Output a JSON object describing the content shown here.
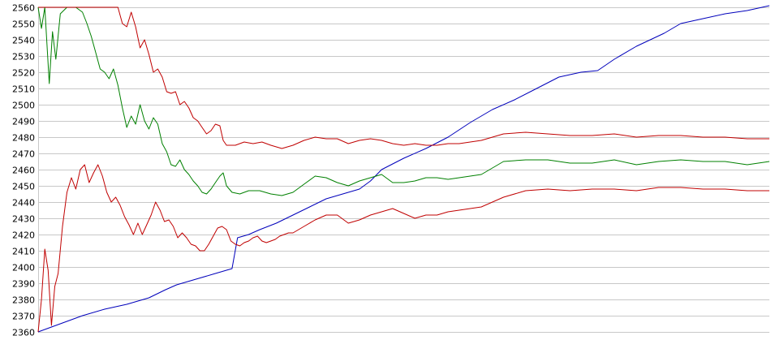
{
  "chart_data": {
    "type": "line",
    "title": "",
    "xlabel": "",
    "ylabel": "",
    "ylim": [
      2360,
      2560
    ],
    "yticks": [
      2360,
      2370,
      2380,
      2390,
      2400,
      2410,
      2420,
      2430,
      2440,
      2450,
      2460,
      2470,
      2480,
      2490,
      2500,
      2510,
      2520,
      2530,
      2540,
      2550,
      2560
    ],
    "grid": true,
    "x_index_range": [
      0,
      300
    ],
    "series": [
      {
        "color": "#0000bb",
        "points": [
          [
            0,
            2360
          ],
          [
            20,
            2365
          ],
          [
            40,
            2370
          ],
          [
            60,
            2374
          ],
          [
            80,
            2377
          ],
          [
            100,
            2381
          ],
          [
            115,
            2386
          ],
          [
            125,
            2389
          ],
          [
            140,
            2392
          ],
          [
            160,
            2396
          ],
          [
            175,
            2399
          ],
          [
            180,
            2418
          ],
          [
            190,
            2420
          ],
          [
            200,
            2423
          ],
          [
            215,
            2427
          ],
          [
            230,
            2432
          ],
          [
            245,
            2437
          ],
          [
            260,
            2442
          ],
          [
            280,
            2446
          ],
          [
            290,
            2448
          ],
          [
            300,
            2453
          ],
          [
            310,
            2460
          ],
          [
            330,
            2467
          ],
          [
            350,
            2473
          ],
          [
            370,
            2480
          ],
          [
            390,
            2489
          ],
          [
            410,
            2497
          ],
          [
            430,
            2503
          ],
          [
            450,
            2510
          ],
          [
            470,
            2517
          ],
          [
            490,
            2520
          ],
          [
            505,
            2521
          ],
          [
            520,
            2528
          ],
          [
            540,
            2536
          ],
          [
            565,
            2544
          ],
          [
            580,
            2550
          ],
          [
            600,
            2553
          ],
          [
            620,
            2556
          ],
          [
            640,
            2558
          ],
          [
            660,
            2561
          ]
        ]
      },
      {
        "color": "#008000",
        "points": [
          [
            0,
            2560
          ],
          [
            3,
            2547
          ],
          [
            6,
            2560
          ],
          [
            10,
            2513
          ],
          [
            13,
            2545
          ],
          [
            16,
            2528
          ],
          [
            20,
            2556
          ],
          [
            26,
            2560
          ],
          [
            34,
            2560
          ],
          [
            40,
            2557
          ],
          [
            44,
            2550
          ],
          [
            48,
            2542
          ],
          [
            52,
            2532
          ],
          [
            56,
            2522
          ],
          [
            60,
            2520
          ],
          [
            64,
            2516
          ],
          [
            68,
            2522
          ],
          [
            72,
            2512
          ],
          [
            76,
            2498
          ],
          [
            80,
            2486
          ],
          [
            84,
            2493
          ],
          [
            88,
            2488
          ],
          [
            92,
            2500
          ],
          [
            96,
            2490
          ],
          [
            100,
            2485
          ],
          [
            104,
            2492
          ],
          [
            108,
            2488
          ],
          [
            112,
            2476
          ],
          [
            116,
            2471
          ],
          [
            120,
            2463
          ],
          [
            124,
            2462
          ],
          [
            128,
            2466
          ],
          [
            132,
            2460
          ],
          [
            136,
            2457
          ],
          [
            140,
            2453
          ],
          [
            144,
            2450
          ],
          [
            148,
            2446
          ],
          [
            152,
            2445
          ],
          [
            156,
            2448
          ],
          [
            160,
            2452
          ],
          [
            164,
            2456
          ],
          [
            167,
            2458
          ],
          [
            170,
            2450
          ],
          [
            175,
            2446
          ],
          [
            182,
            2445
          ],
          [
            190,
            2447
          ],
          [
            200,
            2447
          ],
          [
            210,
            2445
          ],
          [
            220,
            2444
          ],
          [
            230,
            2446
          ],
          [
            240,
            2451
          ],
          [
            250,
            2456
          ],
          [
            260,
            2455
          ],
          [
            270,
            2452
          ],
          [
            280,
            2450
          ],
          [
            290,
            2453
          ],
          [
            300,
            2455
          ],
          [
            310,
            2457
          ],
          [
            320,
            2452
          ],
          [
            330,
            2452
          ],
          [
            340,
            2453
          ],
          [
            350,
            2455
          ],
          [
            360,
            2455
          ],
          [
            370,
            2454
          ],
          [
            380,
            2455
          ],
          [
            390,
            2456
          ],
          [
            400,
            2457
          ],
          [
            420,
            2465
          ],
          [
            440,
            2466
          ],
          [
            460,
            2466
          ],
          [
            480,
            2464
          ],
          [
            500,
            2464
          ],
          [
            520,
            2466
          ],
          [
            540,
            2463
          ],
          [
            560,
            2465
          ],
          [
            580,
            2466
          ],
          [
            600,
            2465
          ],
          [
            620,
            2465
          ],
          [
            640,
            2463
          ],
          [
            660,
            2465
          ]
        ]
      },
      {
        "color": "#c00000",
        "points": [
          [
            0,
            2560
          ],
          [
            30,
            2560
          ],
          [
            60,
            2560
          ],
          [
            72,
            2560
          ],
          [
            76,
            2550
          ],
          [
            80,
            2548
          ],
          [
            84,
            2557
          ],
          [
            88,
            2548
          ],
          [
            92,
            2535
          ],
          [
            96,
            2540
          ],
          [
            100,
            2531
          ],
          [
            104,
            2520
          ],
          [
            108,
            2522
          ],
          [
            112,
            2517
          ],
          [
            116,
            2508
          ],
          [
            120,
            2507
          ],
          [
            124,
            2508
          ],
          [
            128,
            2500
          ],
          [
            132,
            2502
          ],
          [
            136,
            2498
          ],
          [
            140,
            2492
          ],
          [
            144,
            2490
          ],
          [
            148,
            2486
          ],
          [
            152,
            2482
          ],
          [
            156,
            2484
          ],
          [
            160,
            2488
          ],
          [
            164,
            2487
          ],
          [
            167,
            2478
          ],
          [
            170,
            2475
          ],
          [
            178,
            2475
          ],
          [
            186,
            2477
          ],
          [
            194,
            2476
          ],
          [
            202,
            2477
          ],
          [
            210,
            2475
          ],
          [
            220,
            2473
          ],
          [
            230,
            2475
          ],
          [
            240,
            2478
          ],
          [
            250,
            2480
          ],
          [
            260,
            2479
          ],
          [
            270,
            2479
          ],
          [
            280,
            2476
          ],
          [
            290,
            2478
          ],
          [
            300,
            2479
          ],
          [
            310,
            2478
          ],
          [
            320,
            2476
          ],
          [
            330,
            2475
          ],
          [
            340,
            2476
          ],
          [
            350,
            2475
          ],
          [
            360,
            2475
          ],
          [
            370,
            2476
          ],
          [
            380,
            2476
          ],
          [
            390,
            2477
          ],
          [
            400,
            2478
          ],
          [
            420,
            2482
          ],
          [
            440,
            2483
          ],
          [
            460,
            2482
          ],
          [
            480,
            2481
          ],
          [
            500,
            2481
          ],
          [
            520,
            2482
          ],
          [
            540,
            2480
          ],
          [
            560,
            2481
          ],
          [
            580,
            2481
          ],
          [
            600,
            2480
          ],
          [
            620,
            2480
          ],
          [
            640,
            2479
          ],
          [
            660,
            2479
          ]
        ]
      },
      {
        "color": "#c00000",
        "points": [
          [
            0,
            2360
          ],
          [
            3,
            2380
          ],
          [
            6,
            2411
          ],
          [
            9,
            2398
          ],
          [
            12,
            2364
          ],
          [
            15,
            2388
          ],
          [
            18,
            2396
          ],
          [
            22,
            2425
          ],
          [
            26,
            2446
          ],
          [
            30,
            2455
          ],
          [
            34,
            2448
          ],
          [
            38,
            2460
          ],
          [
            42,
            2463
          ],
          [
            46,
            2452
          ],
          [
            50,
            2458
          ],
          [
            54,
            2463
          ],
          [
            58,
            2456
          ],
          [
            62,
            2446
          ],
          [
            66,
            2440
          ],
          [
            70,
            2443
          ],
          [
            74,
            2438
          ],
          [
            78,
            2431
          ],
          [
            82,
            2426
          ],
          [
            86,
            2420
          ],
          [
            90,
            2427
          ],
          [
            94,
            2420
          ],
          [
            98,
            2426
          ],
          [
            102,
            2432
          ],
          [
            106,
            2440
          ],
          [
            110,
            2435
          ],
          [
            114,
            2428
          ],
          [
            118,
            2429
          ],
          [
            122,
            2425
          ],
          [
            126,
            2418
          ],
          [
            130,
            2421
          ],
          [
            134,
            2418
          ],
          [
            138,
            2414
          ],
          [
            142,
            2413
          ],
          [
            146,
            2410
          ],
          [
            150,
            2410
          ],
          [
            154,
            2414
          ],
          [
            158,
            2419
          ],
          [
            162,
            2424
          ],
          [
            166,
            2425
          ],
          [
            170,
            2423
          ],
          [
            174,
            2416
          ],
          [
            178,
            2414
          ],
          [
            182,
            2413
          ],
          [
            186,
            2415
          ],
          [
            190,
            2416
          ],
          [
            194,
            2418
          ],
          [
            198,
            2419
          ],
          [
            202,
            2416
          ],
          [
            206,
            2415
          ],
          [
            210,
            2416
          ],
          [
            214,
            2417
          ],
          [
            218,
            2419
          ],
          [
            222,
            2420
          ],
          [
            226,
            2421
          ],
          [
            230,
            2421
          ],
          [
            240,
            2425
          ],
          [
            250,
            2429
          ],
          [
            260,
            2432
          ],
          [
            270,
            2432
          ],
          [
            280,
            2427
          ],
          [
            290,
            2429
          ],
          [
            300,
            2432
          ],
          [
            310,
            2434
          ],
          [
            320,
            2436
          ],
          [
            330,
            2433
          ],
          [
            340,
            2430
          ],
          [
            350,
            2432
          ],
          [
            360,
            2432
          ],
          [
            370,
            2434
          ],
          [
            380,
            2435
          ],
          [
            390,
            2436
          ],
          [
            400,
            2437
          ],
          [
            420,
            2443
          ],
          [
            440,
            2447
          ],
          [
            460,
            2448
          ],
          [
            480,
            2447
          ],
          [
            500,
            2448
          ],
          [
            520,
            2448
          ],
          [
            540,
            2447
          ],
          [
            560,
            2449
          ],
          [
            580,
            2449
          ],
          [
            600,
            2448
          ],
          [
            620,
            2448
          ],
          [
            640,
            2447
          ],
          [
            660,
            2447
          ]
        ]
      }
    ]
  }
}
